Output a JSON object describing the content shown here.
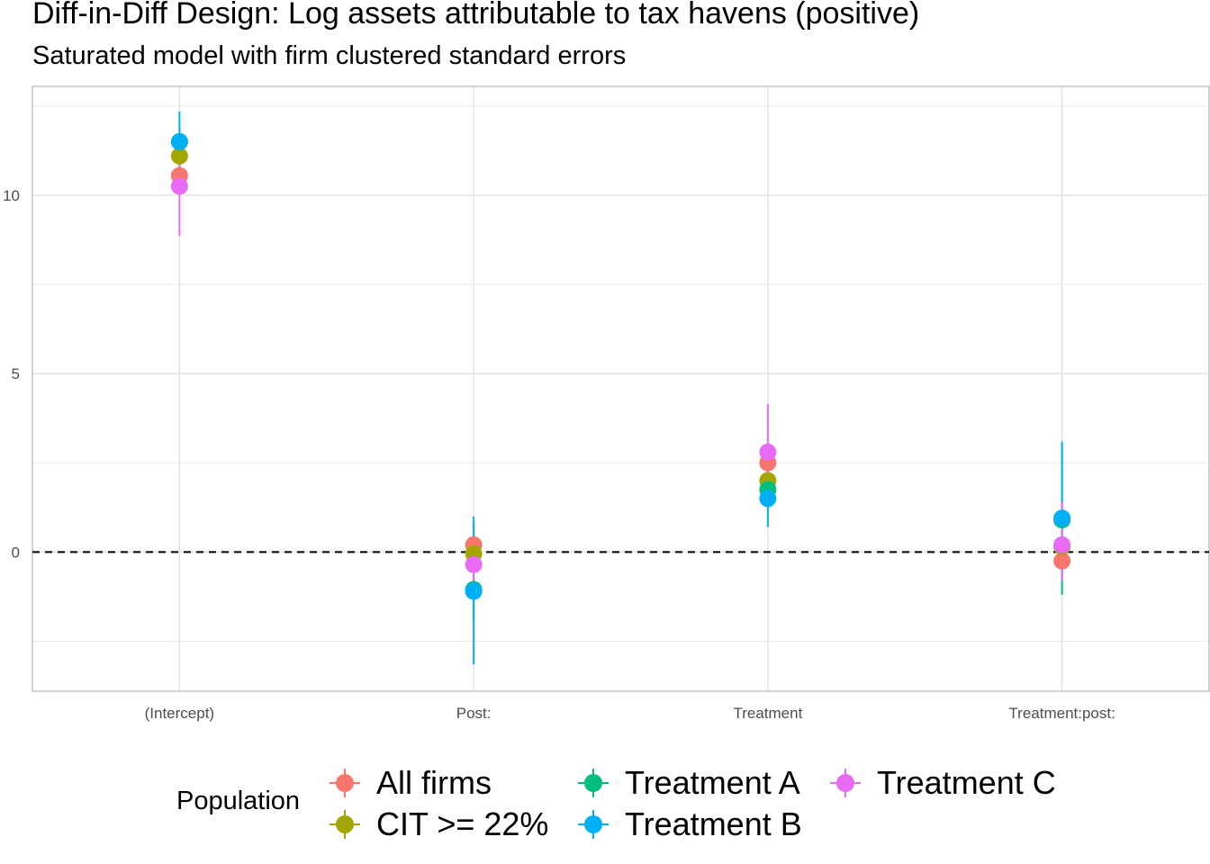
{
  "chart_data": {
    "type": "scatter",
    "title": "Diff-in-Diff Design: Log assets attributable to tax havens (positive)",
    "subtitle": "Saturated model with firm clustered standard errors",
    "xlabel": "",
    "ylabel": "",
    "categories": [
      "(Intercept)",
      "Post:",
      "Treatment",
      "Treatment:post:"
    ],
    "ylim": [
      -3.9,
      13.05
    ],
    "yticks": [
      0,
      5,
      10
    ],
    "grid": true,
    "reference_line": {
      "y": 0,
      "style": "dashed"
    },
    "legend": {
      "title": "Population",
      "position": "bottom"
    },
    "series": [
      {
        "name": "All firms",
        "color": "#F8766D",
        "values": [
          10.55,
          0.2,
          2.5,
          -0.25
        ],
        "lower": [
          10.2,
          -0.3,
          2.0,
          -0.6
        ],
        "upper": [
          10.9,
          0.7,
          3.0,
          0.1
        ]
      },
      {
        "name": "CIT >= 22%",
        "color": "#A3A500",
        "values": [
          11.1,
          -0.05,
          2.0,
          0.15
        ],
        "lower": [
          10.7,
          -0.9,
          1.5,
          -0.5
        ],
        "upper": [
          11.5,
          0.85,
          2.5,
          0.8
        ]
      },
      {
        "name": "Treatment A",
        "color": "#00BF7D",
        "values": [
          11.5,
          -1.05,
          1.75,
          0.9
        ],
        "lower": [
          11.1,
          -2.0,
          1.2,
          -1.2
        ],
        "upper": [
          11.9,
          -0.1,
          2.3,
          3.0
        ]
      },
      {
        "name": "Treatment B",
        "color": "#00B0F6",
        "values": [
          11.5,
          -1.1,
          1.5,
          0.95
        ],
        "lower": [
          10.6,
          -3.15,
          0.7,
          -0.8
        ],
        "upper": [
          12.35,
          1.0,
          2.3,
          3.1
        ]
      },
      {
        "name": "Treatment C",
        "color": "#E76BF3",
        "values": [
          10.25,
          -0.35,
          2.8,
          0.2
        ],
        "lower": [
          8.85,
          -1.0,
          1.4,
          -0.8
        ],
        "upper": [
          11.3,
          0.4,
          4.15,
          1.4
        ]
      }
    ]
  }
}
